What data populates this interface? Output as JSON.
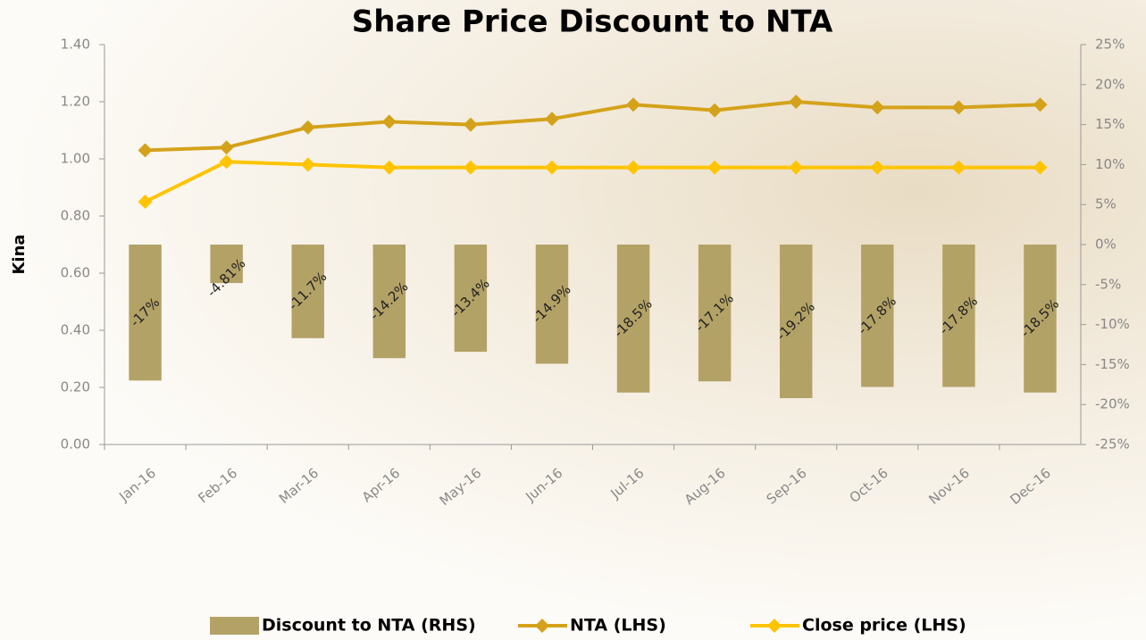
{
  "chart_data": {
    "type": "combo",
    "title": "Share Price Discount to NTA",
    "y_label": "Kina",
    "categories": [
      "Jan-16",
      "Feb-16",
      "Mar-16",
      "Apr-16",
      "May-16",
      "Jun-16",
      "Jul-16",
      "Aug-16",
      "Sep-16",
      "Oct-16",
      "Nov-16",
      "Dec-16"
    ],
    "series": [
      {
        "name": "Discount to NTA (RHS)",
        "type": "bar",
        "axis": "y2",
        "color": "#b3a266",
        "values": [
          -17,
          -4.81,
          -11.7,
          -14.2,
          -13.4,
          -14.9,
          -18.5,
          -17.1,
          -19.2,
          -17.8,
          -17.8,
          -18.5
        ],
        "value_labels": [
          "-17%",
          "-4.81%",
          "-11.7%",
          "-14.2%",
          "-13.4%",
          "-14.9%",
          "-18.5%",
          "-17.1%",
          "-19.2%",
          "-17.8%",
          "-17.8%",
          "-18.5%"
        ]
      },
      {
        "name": "NTA (LHS)",
        "type": "line",
        "color": "#d4a21a",
        "values": [
          1.03,
          1.04,
          1.11,
          1.13,
          1.12,
          1.14,
          1.19,
          1.17,
          1.2,
          1.18,
          1.18,
          1.19
        ]
      },
      {
        "name": "Close price (LHS)",
        "type": "line",
        "color": "#ffc400",
        "values": [
          0.85,
          0.99,
          0.98,
          0.97,
          0.97,
          0.97,
          0.97,
          0.97,
          0.97,
          0.97,
          0.97,
          0.97
        ]
      }
    ],
    "ylim": [
      0,
      1.4
    ],
    "yticks": [
      {
        "value": 0,
        "label": "0.00"
      },
      {
        "value": 0.2,
        "label": "0.20"
      },
      {
        "value": 0.4,
        "label": "0.40"
      },
      {
        "value": 0.6,
        "label": "0.60"
      },
      {
        "value": 0.8,
        "label": "0.80"
      },
      {
        "value": 1,
        "label": "1.00"
      },
      {
        "value": 1.2,
        "label": "1.20"
      },
      {
        "value": 1.4,
        "label": "1.40"
      }
    ],
    "y2lim": [
      -25,
      25
    ],
    "y2ticks": [
      {
        "value": -25,
        "label": "-25%"
      },
      {
        "value": -20,
        "label": "-20%"
      },
      {
        "value": -15,
        "label": "-15%"
      },
      {
        "value": -10,
        "label": "-10%"
      },
      {
        "value": -5,
        "label": "-5%"
      },
      {
        "value": 0,
        "label": "0%"
      },
      {
        "value": 5,
        "label": "5%"
      },
      {
        "value": 10,
        "label": "10%"
      },
      {
        "value": 15,
        "label": "15%"
      },
      {
        "value": 20,
        "label": "20%"
      },
      {
        "value": 25,
        "label": "25%"
      }
    ],
    "legend": "bottom"
  }
}
